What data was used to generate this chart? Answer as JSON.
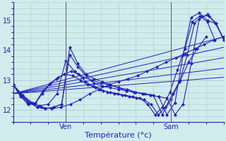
{
  "xlabel": "Température (°c)",
  "bg_color": "#d0ecec",
  "grid_color": "#a8cccc",
  "line_color": "#2222bb",
  "marker_size": 2.5,
  "yticks": [
    12,
    13,
    14,
    15
  ],
  "ylim": [
    11.6,
    15.6
  ],
  "xlim": [
    0,
    48
  ],
  "ven_x": 12,
  "sam_x": 36,
  "series": [
    [
      12.85,
      12.5,
      12.25,
      12.1,
      12.05,
      12.1,
      12.2,
      12.35,
      12.55,
      12.7,
      12.85,
      12.95,
      13.05,
      13.15,
      13.3,
      13.45,
      13.6,
      13.75,
      13.9,
      14.05,
      14.2,
      14.35,
      14.45
    ],
    [
      12.85,
      12.5,
      12.25,
      12.1,
      12.05,
      12.1,
      12.2,
      14.1,
      13.55,
      13.2,
      13.05,
      12.95,
      12.85,
      12.75,
      12.65,
      12.6,
      12.55,
      12.5,
      12.45,
      11.85,
      12.25,
      13.85,
      15.1,
      15.25,
      15.0,
      14.9,
      14.4
    ],
    [
      12.85,
      12.5,
      12.25,
      12.1,
      12.05,
      12.1,
      12.2,
      13.85,
      13.45,
      13.15,
      12.9,
      12.8,
      12.75,
      12.7,
      12.65,
      12.6,
      12.55,
      12.5,
      12.45,
      12.4,
      11.85,
      12.2,
      13.55,
      15.05,
      15.2,
      14.9,
      14.4
    ],
    [
      12.85,
      12.5,
      12.25,
      12.15,
      12.2,
      12.55,
      13.65,
      13.3,
      13.1,
      13.0,
      12.9,
      12.85,
      12.75,
      12.7,
      12.6,
      12.55,
      12.5,
      11.85,
      12.35,
      12.95,
      13.6,
      14.05,
      14.45
    ],
    [
      12.85,
      12.5,
      12.25,
      12.2,
      12.55,
      12.85,
      13.05,
      13.2,
      13.3,
      13.2,
      12.95,
      12.8,
      12.7,
      12.6,
      12.55,
      12.5,
      12.45,
      12.4,
      12.35,
      12.2,
      11.85,
      12.1,
      12.55,
      13.0,
      13.85,
      14.9,
      15.15,
      15.15,
      14.9,
      14.35
    ],
    [
      12.85,
      12.45,
      12.2,
      12.25,
      12.65,
      12.9,
      13.1,
      13.2,
      13.15,
      13.0,
      12.85,
      12.75,
      12.65,
      12.6,
      12.55,
      12.5,
      12.45,
      12.4,
      12.2,
      11.85,
      12.1,
      12.6,
      13.35,
      14.05,
      14.95,
      15.15,
      14.95,
      14.35
    ]
  ],
  "trend_lines": [
    {
      "x0": 0,
      "x1": 48,
      "y0": 12.55,
      "y1": 14.45
    },
    {
      "x0": 0,
      "x1": 48,
      "y0": 12.55,
      "y1": 14.1
    },
    {
      "x0": 0,
      "x1": 48,
      "y0": 12.55,
      "y1": 13.75
    },
    {
      "x0": 0,
      "x1": 48,
      "y0": 12.55,
      "y1": 13.4
    },
    {
      "x0": 0,
      "x1": 48,
      "y0": 12.55,
      "y1": 13.1
    }
  ]
}
